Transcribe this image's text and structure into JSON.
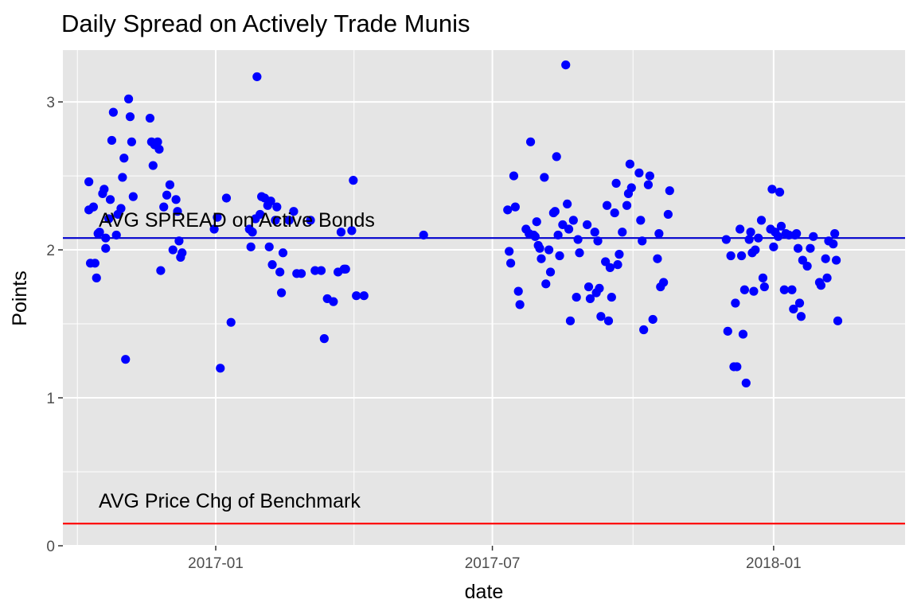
{
  "chart_data": {
    "type": "scatter",
    "title": "Daily Spread on Actively Trade Munis",
    "xlabel": "date",
    "ylabel": "Points",
    "x_ticks": [
      "2017-01",
      "2017-07",
      "2018-01"
    ],
    "y_ticks": [
      "0",
      "1",
      "2",
      "3"
    ],
    "ylim": [
      0,
      3.35
    ],
    "xlim": [
      "2016-09-23",
      "2018-03-28"
    ],
    "grid": true,
    "point_color": "#0000ff",
    "panel_background": "#e5e5e5",
    "grid_color": "#ffffff",
    "reference_lines": [
      {
        "label": "AVG SPREAD on Active Bonds",
        "y": 2.08,
        "color": "#0000cd"
      },
      {
        "label": "AVG Price Chg of Benchmark",
        "y": 0.15,
        "color": "#ff0000"
      }
    ],
    "points": [
      {
        "x": "2016-10-10",
        "y": 2.46
      },
      {
        "x": "2016-10-10",
        "y": 2.27
      },
      {
        "x": "2016-10-11",
        "y": 1.91
      },
      {
        "x": "2016-10-13",
        "y": 2.29
      },
      {
        "x": "2016-10-14",
        "y": 1.91
      },
      {
        "x": "2016-10-15",
        "y": 1.81
      },
      {
        "x": "2016-10-16",
        "y": 2.11
      },
      {
        "x": "2016-10-17",
        "y": 2.12
      },
      {
        "x": "2016-10-19",
        "y": 2.38
      },
      {
        "x": "2016-10-20",
        "y": 2.41
      },
      {
        "x": "2016-10-21",
        "y": 2.01
      },
      {
        "x": "2016-10-21",
        "y": 2.08
      },
      {
        "x": "2016-10-23",
        "y": 2.21
      },
      {
        "x": "2016-10-24",
        "y": 2.34
      },
      {
        "x": "2016-10-25",
        "y": 2.74
      },
      {
        "x": "2016-10-26",
        "y": 2.93
      },
      {
        "x": "2016-10-28",
        "y": 2.1
      },
      {
        "x": "2016-10-29",
        "y": 2.24
      },
      {
        "x": "2016-10-31",
        "y": 2.28
      },
      {
        "x": "2016-11-01",
        "y": 2.49
      },
      {
        "x": "2016-11-02",
        "y": 2.62
      },
      {
        "x": "2016-11-03",
        "y": 1.26
      },
      {
        "x": "2016-11-05",
        "y": 3.02
      },
      {
        "x": "2016-11-06",
        "y": 2.9
      },
      {
        "x": "2016-11-07",
        "y": 2.73
      },
      {
        "x": "2016-11-08",
        "y": 2.36
      },
      {
        "x": "2016-11-19",
        "y": 2.89
      },
      {
        "x": "2016-11-20",
        "y": 2.73
      },
      {
        "x": "2016-11-21",
        "y": 2.57
      },
      {
        "x": "2016-11-22",
        "y": 2.71
      },
      {
        "x": "2016-11-24",
        "y": 2.73
      },
      {
        "x": "2016-11-25",
        "y": 2.68
      },
      {
        "x": "2016-11-26",
        "y": 1.86
      },
      {
        "x": "2016-11-28",
        "y": 2.29
      },
      {
        "x": "2016-11-30",
        "y": 2.37
      },
      {
        "x": "2016-12-02",
        "y": 2.44
      },
      {
        "x": "2016-12-04",
        "y": 2.0
      },
      {
        "x": "2016-12-06",
        "y": 2.34
      },
      {
        "x": "2016-12-07",
        "y": 2.26
      },
      {
        "x": "2016-12-08",
        "y": 2.06
      },
      {
        "x": "2016-12-09",
        "y": 1.95
      },
      {
        "x": "2016-12-10",
        "y": 1.98
      },
      {
        "x": "2016-12-31",
        "y": 2.14
      },
      {
        "x": "2017-01-02",
        "y": 2.22
      },
      {
        "x": "2017-01-04",
        "y": 1.2
      },
      {
        "x": "2017-01-08",
        "y": 2.35
      },
      {
        "x": "2017-01-11",
        "y": 1.51
      },
      {
        "x": "2017-01-23",
        "y": 2.14
      },
      {
        "x": "2017-01-24",
        "y": 2.02
      },
      {
        "x": "2017-01-25",
        "y": 2.12
      },
      {
        "x": "2017-01-27",
        "y": 2.21
      },
      {
        "x": "2017-01-28",
        "y": 3.17
      },
      {
        "x": "2017-01-30",
        "y": 2.24
      },
      {
        "x": "2017-01-31",
        "y": 2.36
      },
      {
        "x": "2017-02-02",
        "y": 2.35
      },
      {
        "x": "2017-02-04",
        "y": 2.3
      },
      {
        "x": "2017-02-05",
        "y": 2.02
      },
      {
        "x": "2017-02-06",
        "y": 2.33
      },
      {
        "x": "2017-02-07",
        "y": 1.9
      },
      {
        "x": "2017-02-09",
        "y": 2.2
      },
      {
        "x": "2017-02-10",
        "y": 2.29
      },
      {
        "x": "2017-02-12",
        "y": 1.85
      },
      {
        "x": "2017-02-13",
        "y": 1.71
      },
      {
        "x": "2017-02-14",
        "y": 1.98
      },
      {
        "x": "2017-02-18",
        "y": 2.2
      },
      {
        "x": "2017-02-21",
        "y": 2.26
      },
      {
        "x": "2017-02-23",
        "y": 1.84
      },
      {
        "x": "2017-02-26",
        "y": 1.84
      },
      {
        "x": "2017-03-04",
        "y": 2.2
      },
      {
        "x": "2017-03-07",
        "y": 1.86
      },
      {
        "x": "2017-03-11",
        "y": 1.86
      },
      {
        "x": "2017-03-13",
        "y": 1.4
      },
      {
        "x": "2017-03-15",
        "y": 1.67
      },
      {
        "x": "2017-03-19",
        "y": 1.65
      },
      {
        "x": "2017-03-22",
        "y": 1.85
      },
      {
        "x": "2017-03-24",
        "y": 2.12
      },
      {
        "x": "2017-03-26",
        "y": 1.87
      },
      {
        "x": "2017-03-27",
        "y": 1.87
      },
      {
        "x": "2017-03-31",
        "y": 2.13
      },
      {
        "x": "2017-04-01",
        "y": 2.47
      },
      {
        "x": "2017-04-03",
        "y": 1.69
      },
      {
        "x": "2017-04-08",
        "y": 1.69
      },
      {
        "x": "2017-05-17",
        "y": 2.1
      },
      {
        "x": "2017-07-11",
        "y": 2.27
      },
      {
        "x": "2017-07-12",
        "y": 1.99
      },
      {
        "x": "2017-07-13",
        "y": 1.91
      },
      {
        "x": "2017-07-15",
        "y": 2.5
      },
      {
        "x": "2017-07-16",
        "y": 2.29
      },
      {
        "x": "2017-07-18",
        "y": 1.72
      },
      {
        "x": "2017-07-19",
        "y": 1.63
      },
      {
        "x": "2017-07-23",
        "y": 2.14
      },
      {
        "x": "2017-07-25",
        "y": 2.11
      },
      {
        "x": "2017-07-26",
        "y": 2.73
      },
      {
        "x": "2017-07-28",
        "y": 2.1
      },
      {
        "x": "2017-07-29",
        "y": 2.09
      },
      {
        "x": "2017-07-30",
        "y": 2.19
      },
      {
        "x": "2017-07-31",
        "y": 2.03
      },
      {
        "x": "2017-08-01",
        "y": 2.01
      },
      {
        "x": "2017-08-02",
        "y": 1.94
      },
      {
        "x": "2017-08-04",
        "y": 2.49
      },
      {
        "x": "2017-08-05",
        "y": 1.77
      },
      {
        "x": "2017-08-07",
        "y": 2.0
      },
      {
        "x": "2017-08-08",
        "y": 1.85
      },
      {
        "x": "2017-08-10",
        "y": 2.25
      },
      {
        "x": "2017-08-11",
        "y": 2.26
      },
      {
        "x": "2017-08-12",
        "y": 2.63
      },
      {
        "x": "2017-08-13",
        "y": 2.1
      },
      {
        "x": "2017-08-14",
        "y": 1.96
      },
      {
        "x": "2017-08-16",
        "y": 2.17
      },
      {
        "x": "2017-08-18",
        "y": 3.25
      },
      {
        "x": "2017-08-19",
        "y": 2.31
      },
      {
        "x": "2017-08-20",
        "y": 2.14
      },
      {
        "x": "2017-08-21",
        "y": 1.52
      },
      {
        "x": "2017-08-23",
        "y": 2.2
      },
      {
        "x": "2017-08-25",
        "y": 1.68
      },
      {
        "x": "2017-08-26",
        "y": 2.07
      },
      {
        "x": "2017-08-27",
        "y": 1.98
      },
      {
        "x": "2017-09-01",
        "y": 2.17
      },
      {
        "x": "2017-09-02",
        "y": 1.75
      },
      {
        "x": "2017-09-03",
        "y": 1.67
      },
      {
        "x": "2017-09-06",
        "y": 2.12
      },
      {
        "x": "2017-09-07",
        "y": 1.71
      },
      {
        "x": "2017-09-08",
        "y": 2.06
      },
      {
        "x": "2017-09-09",
        "y": 1.74
      },
      {
        "x": "2017-09-10",
        "y": 1.55
      },
      {
        "x": "2017-09-13",
        "y": 1.92
      },
      {
        "x": "2017-09-14",
        "y": 2.3
      },
      {
        "x": "2017-09-15",
        "y": 1.52
      },
      {
        "x": "2017-09-16",
        "y": 1.88
      },
      {
        "x": "2017-09-17",
        "y": 1.68
      },
      {
        "x": "2017-09-19",
        "y": 2.25
      },
      {
        "x": "2017-09-20",
        "y": 2.45
      },
      {
        "x": "2017-09-21",
        "y": 1.9
      },
      {
        "x": "2017-09-22",
        "y": 1.97
      },
      {
        "x": "2017-09-24",
        "y": 2.12
      },
      {
        "x": "2017-09-27",
        "y": 2.3
      },
      {
        "x": "2017-09-28",
        "y": 2.38
      },
      {
        "x": "2017-09-29",
        "y": 2.58
      },
      {
        "x": "2017-09-30",
        "y": 2.42
      },
      {
        "x": "2017-10-05",
        "y": 2.52
      },
      {
        "x": "2017-10-06",
        "y": 2.2
      },
      {
        "x": "2017-10-07",
        "y": 2.06
      },
      {
        "x": "2017-10-08",
        "y": 1.46
      },
      {
        "x": "2017-10-11",
        "y": 2.44
      },
      {
        "x": "2017-10-12",
        "y": 2.5
      },
      {
        "x": "2017-10-14",
        "y": 1.53
      },
      {
        "x": "2017-10-17",
        "y": 1.94
      },
      {
        "x": "2017-10-18",
        "y": 2.11
      },
      {
        "x": "2017-10-19",
        "y": 1.75
      },
      {
        "x": "2017-10-21",
        "y": 1.78
      },
      {
        "x": "2017-10-24",
        "y": 2.24
      },
      {
        "x": "2017-10-25",
        "y": 2.4
      },
      {
        "x": "2017-12-01",
        "y": 2.07
      },
      {
        "x": "2017-12-02",
        "y": 1.45
      },
      {
        "x": "2017-12-04",
        "y": 1.96
      },
      {
        "x": "2017-12-06",
        "y": 1.21
      },
      {
        "x": "2017-12-07",
        "y": 1.64
      },
      {
        "x": "2017-12-08",
        "y": 1.21
      },
      {
        "x": "2017-12-10",
        "y": 2.14
      },
      {
        "x": "2017-12-11",
        "y": 1.96
      },
      {
        "x": "2017-12-12",
        "y": 1.43
      },
      {
        "x": "2017-12-13",
        "y": 1.73
      },
      {
        "x": "2017-12-14",
        "y": 1.1
      },
      {
        "x": "2017-12-16",
        "y": 2.07
      },
      {
        "x": "2017-12-17",
        "y": 2.12
      },
      {
        "x": "2017-12-18",
        "y": 1.98
      },
      {
        "x": "2017-12-19",
        "y": 1.72
      },
      {
        "x": "2017-12-20",
        "y": 2.0
      },
      {
        "x": "2017-12-22",
        "y": 2.08
      },
      {
        "x": "2017-12-24",
        "y": 2.2
      },
      {
        "x": "2017-12-25",
        "y": 1.81
      },
      {
        "x": "2017-12-26",
        "y": 1.75
      },
      {
        "x": "2017-12-30",
        "y": 2.14
      },
      {
        "x": "2017-12-31",
        "y": 2.41
      },
      {
        "x": "2018-01-01",
        "y": 2.02
      },
      {
        "x": "2018-01-02",
        "y": 2.12
      },
      {
        "x": "2018-01-04",
        "y": 2.09
      },
      {
        "x": "2018-01-05",
        "y": 2.39
      },
      {
        "x": "2018-01-06",
        "y": 2.16
      },
      {
        "x": "2018-01-08",
        "y": 1.73
      },
      {
        "x": "2018-01-09",
        "y": 2.11
      },
      {
        "x": "2018-01-11",
        "y": 2.1
      },
      {
        "x": "2018-01-13",
        "y": 1.73
      },
      {
        "x": "2018-01-14",
        "y": 1.6
      },
      {
        "x": "2018-01-15",
        "y": 2.1
      },
      {
        "x": "2018-01-16",
        "y": 2.11
      },
      {
        "x": "2018-01-17",
        "y": 2.01
      },
      {
        "x": "2018-01-18",
        "y": 1.64
      },
      {
        "x": "2018-01-19",
        "y": 1.55
      },
      {
        "x": "2018-01-20",
        "y": 1.93
      },
      {
        "x": "2018-01-23",
        "y": 1.89
      },
      {
        "x": "2018-01-25",
        "y": 2.01
      },
      {
        "x": "2018-01-27",
        "y": 2.09
      },
      {
        "x": "2018-01-31",
        "y": 1.78
      },
      {
        "x": "2018-02-01",
        "y": 1.76
      },
      {
        "x": "2018-02-04",
        "y": 1.94
      },
      {
        "x": "2018-02-05",
        "y": 1.81
      },
      {
        "x": "2018-02-06",
        "y": 2.06
      },
      {
        "x": "2018-02-09",
        "y": 2.04
      },
      {
        "x": "2018-02-10",
        "y": 2.11
      },
      {
        "x": "2018-02-11",
        "y": 1.93
      },
      {
        "x": "2018-02-12",
        "y": 1.52
      }
    ]
  }
}
